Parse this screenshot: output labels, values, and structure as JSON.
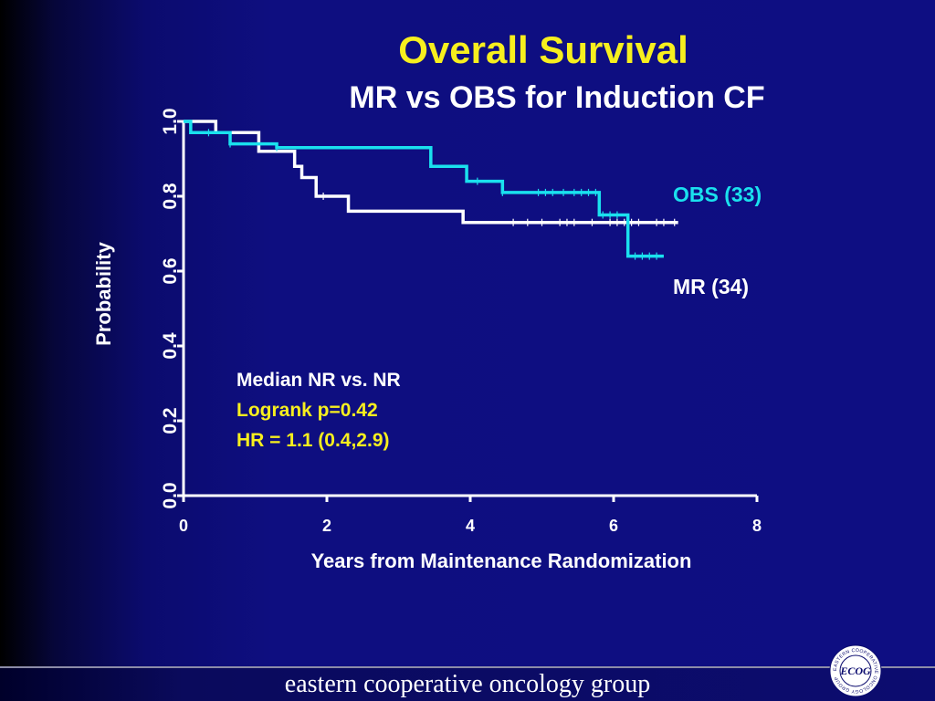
{
  "title": "Overall Survival",
  "subtitle": "MR vs OBS for Induction CF",
  "colors": {
    "title": "#f7ef1e",
    "obs": "#1ae1ee",
    "mr": "#ffffff",
    "axis": "#ffffff",
    "yellow_text": "#f7ef1e"
  },
  "chart_data": {
    "type": "line",
    "subtype": "kaplan-meier",
    "xlabel": "Years from Maintenance Randomization",
    "ylabel": "Probability",
    "xlim": [
      0,
      8
    ],
    "ylim": [
      0,
      1
    ],
    "xticks": [
      0,
      2,
      4,
      6,
      8
    ],
    "yticks": [
      "0.0",
      "0.2",
      "0.4",
      "0.6",
      "0.8",
      "1.0"
    ],
    "series": [
      {
        "name": "OBS (33)",
        "color": "#1ae1ee",
        "steps": [
          [
            0,
            1.0
          ],
          [
            0.1,
            0.97
          ],
          [
            0.65,
            0.94
          ],
          [
            1.3,
            0.94
          ],
          [
            1.3,
            0.93
          ],
          [
            3.45,
            0.88
          ],
          [
            3.95,
            0.84
          ],
          [
            4.45,
            0.81
          ],
          [
            5.8,
            0.75
          ],
          [
            6.2,
            0.64
          ],
          [
            6.7,
            0.64
          ]
        ],
        "censored": [
          0.35,
          0.65,
          1.3,
          4.1,
          4.45,
          4.95,
          5.05,
          5.15,
          5.3,
          5.45,
          5.55,
          5.65,
          5.75,
          5.85,
          5.95,
          6.05,
          6.3,
          6.4,
          6.5,
          6.6
        ]
      },
      {
        "name": "MR (34)",
        "color": "#ffffff",
        "steps": [
          [
            0,
            1.0
          ],
          [
            0.45,
            0.97
          ],
          [
            1.05,
            0.92
          ],
          [
            1.55,
            0.88
          ],
          [
            1.65,
            0.85
          ],
          [
            1.85,
            0.8
          ],
          [
            2.3,
            0.76
          ],
          [
            3.9,
            0.73
          ],
          [
            6.9,
            0.73
          ]
        ],
        "censored": [
          1.95,
          4.6,
          4.8,
          5.0,
          5.25,
          5.35,
          5.45,
          5.7,
          5.95,
          6.05,
          6.15,
          6.25,
          6.35,
          6.6,
          6.7,
          6.85
        ]
      }
    ],
    "annotations": [
      "Median NR vs. NR",
      "Logrank p=0.42",
      "HR = 1.1 (0.4,2.9)"
    ]
  },
  "footer": {
    "text": "eastern cooperative oncology group",
    "logo_text_outer": "EASTERN COOPERATIVE ONCOLOGY GROUP",
    "logo_text_center": "ECOG"
  }
}
